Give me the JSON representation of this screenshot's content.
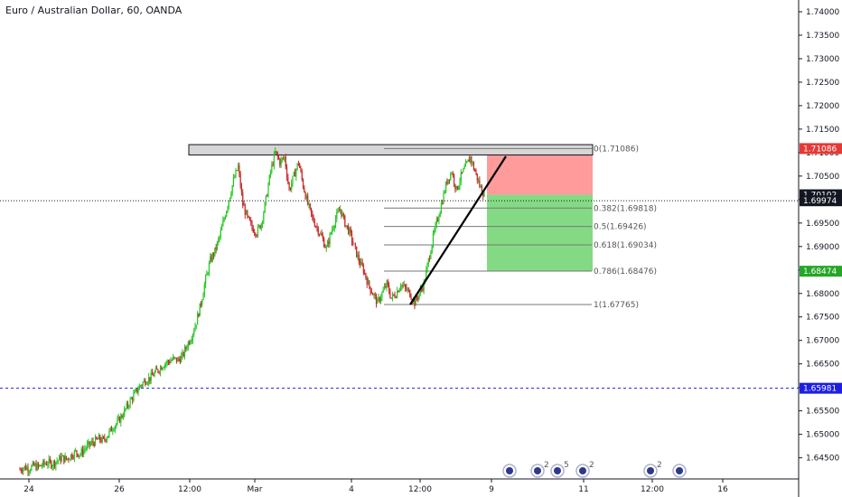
{
  "chart_data": {
    "type": "candlestick",
    "title": "Euro / Australian Dollar, 60, OANDA",
    "ylim": [
      1.6405,
      1.7425
    ],
    "y_ticks": [
      "1.74000",
      "1.73500",
      "1.73000",
      "1.72500",
      "1.72000",
      "1.71500",
      "1.71000",
      "1.70500",
      "1.70000",
      "1.69500",
      "1.69000",
      "1.68500",
      "1.68000",
      "1.67500",
      "1.67000",
      "1.66500",
      "1.66000",
      "1.65500",
      "1.65000",
      "1.64500"
    ],
    "x_ticks": [
      "24",
      "26",
      "12:00",
      "Mar",
      "4",
      "12:00",
      "9",
      "11",
      "12:00",
      "16"
    ],
    "price_badges": [
      {
        "label": "1.71086",
        "value": 1.71086,
        "color": "#e53935"
      },
      {
        "label": "1.70102",
        "value": 1.70102,
        "color": "#131722"
      },
      {
        "label": "1.69974",
        "value": 1.69974,
        "color": "#131722"
      },
      {
        "label": "1.68474",
        "value": 1.68474,
        "color": "#26a626"
      },
      {
        "label": "1.65981",
        "value": 1.65981,
        "color": "#1e1ee6"
      }
    ],
    "fib_levels": [
      {
        "ratio": "0",
        "value": 1.71086,
        "label": "0(1.71086)"
      },
      {
        "ratio": "0.382",
        "value": 1.69818,
        "label": "0.382(1.69818)"
      },
      {
        "ratio": "0.5",
        "value": 1.69426,
        "label": "0.5(1.69426)"
      },
      {
        "ratio": "0.618",
        "value": 1.69034,
        "label": "0.618(1.69034)"
      },
      {
        "ratio": "0.786",
        "value": 1.68476,
        "label": "0.786(1.68476)"
      },
      {
        "ratio": "1",
        "value": 1.67765,
        "label": "1(1.67765)"
      }
    ],
    "horizontal_lines": [
      {
        "value": 1.69974,
        "style": "dotted",
        "color": "#131722"
      },
      {
        "value": 1.65981,
        "style": "dashed",
        "color": "#1e1ee6"
      }
    ],
    "resistance_zone": {
      "from": 1.7095,
      "to": 1.7117,
      "color": "#d6d6d6"
    },
    "position": {
      "entry": 1.70102,
      "stop": 1.71086,
      "target": 1.68474
    },
    "trendline": {
      "from": 1.67765,
      "to": 1.7092
    },
    "close_path": [
      1.6425,
      1.643,
      1.6427,
      1.6433,
      1.643,
      1.6436,
      1.644,
      1.6437,
      1.6444,
      1.645,
      1.6447,
      1.6455,
      1.6462,
      1.6458,
      1.647,
      1.6478,
      1.6484,
      1.649,
      1.6487,
      1.65,
      1.6515,
      1.6525,
      1.654,
      1.6558,
      1.6575,
      1.659,
      1.6605,
      1.6615,
      1.662,
      1.663,
      1.664,
      1.665,
      1.6655,
      1.666,
      1.6658,
      1.6666,
      1.669,
      1.671,
      1.674,
      1.678,
      1.683,
      1.687,
      1.689,
      1.692,
      1.696,
      1.7,
      1.704,
      1.707,
      1.699,
      1.696,
      1.694,
      1.693,
      1.695,
      1.7,
      1.706,
      1.71,
      1.708,
      1.709,
      1.702,
      1.705,
      1.708,
      1.703,
      1.699,
      1.696,
      1.694,
      1.692,
      1.6895,
      1.693,
      1.696,
      1.698,
      1.695,
      1.693,
      1.69,
      1.687,
      1.685,
      1.682,
      1.68,
      1.678,
      1.68,
      1.682,
      1.679,
      1.68,
      1.682,
      1.681,
      1.68,
      1.678,
      1.68,
      1.682,
      1.687,
      1.692,
      1.696,
      1.7,
      1.704,
      1.706,
      1.702,
      1.705,
      1.707,
      1.709,
      1.706,
      1.703,
      1.701
    ],
    "bottom_markers": [
      {
        "x_index": 0,
        "count": ""
      },
      {
        "x_index": 1,
        "count": "2"
      },
      {
        "x_index": 2,
        "count": "5"
      },
      {
        "x_index": 3,
        "count": "2"
      },
      {
        "x_index": 4,
        "count": "2"
      },
      {
        "x_index": 5,
        "count": ""
      }
    ]
  }
}
